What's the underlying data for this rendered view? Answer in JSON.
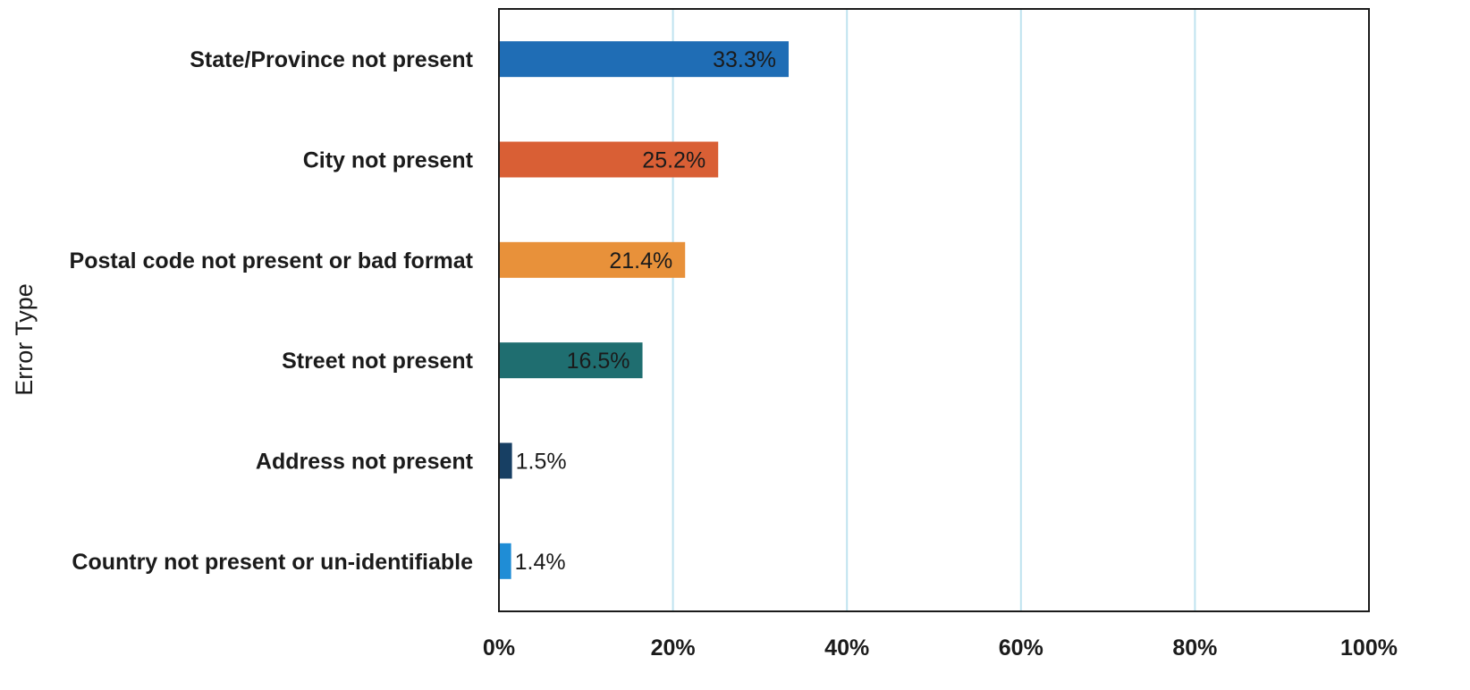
{
  "chart_data": {
    "type": "bar",
    "orientation": "horizontal",
    "title": "",
    "xlabel": "",
    "ylabel": "Error Type",
    "xlim": [
      0,
      100
    ],
    "x_ticks": [
      0,
      20,
      40,
      60,
      80,
      100
    ],
    "x_tick_labels": [
      "0%",
      "20%",
      "40%",
      "60%",
      "80%",
      "100%"
    ],
    "grid": true,
    "legend": "none",
    "categories": [
      "State/Province not present",
      "City not present",
      "Postal code not present or bad format",
      "Street not present",
      "Address not present",
      "Country not present or un-identifiable"
    ],
    "values": [
      33.3,
      25.2,
      21.4,
      16.5,
      1.5,
      1.4
    ],
    "data_labels": [
      "33.3%",
      "25.2%",
      "21.4%",
      "16.5%",
      "1.5%",
      "1.4%"
    ],
    "colors": [
      "#1f6db5",
      "#d95f35",
      "#e8913a",
      "#1f6e70",
      "#173f63",
      "#1f8dd6"
    ],
    "gridline_color": "#bfe3ef",
    "frame_color": "#1b1b1b"
  }
}
